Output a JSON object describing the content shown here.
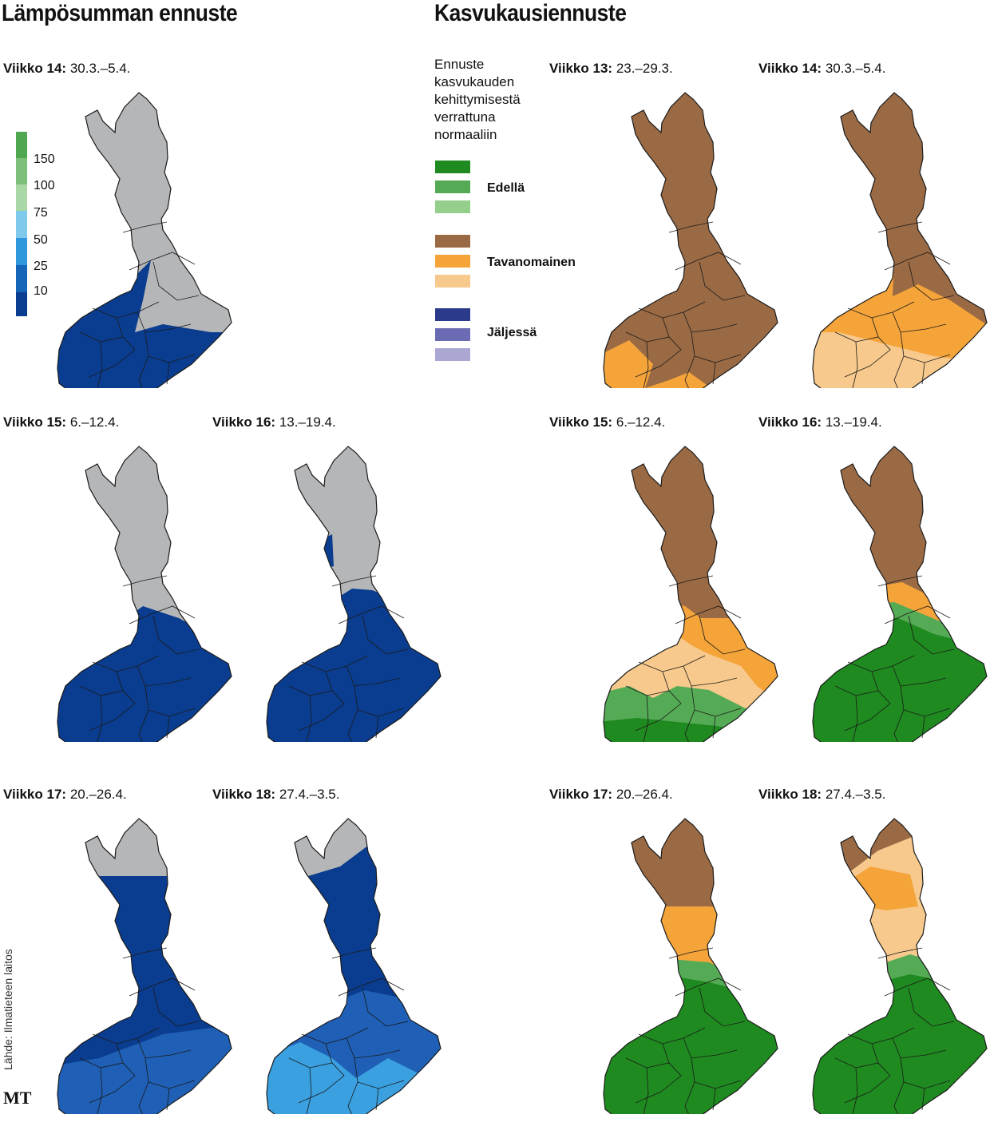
{
  "heat": {
    "title": "Lämpösumman ennuste",
    "legend": {
      "ticks": [
        "150",
        "100",
        "75",
        "50",
        "25",
        "10"
      ],
      "colors": [
        "#4fa84f",
        "#7cc07a",
        "#a9d7a5",
        "#7ec9ec",
        "#2f97dc",
        "#1565b8",
        "#0a3d8f"
      ]
    },
    "panels": [
      {
        "week": "Viikko 14:",
        "dates": "30.3.–5.4."
      },
      {
        "week": "Viikko 15:",
        "dates": "6.–12.4."
      },
      {
        "week": "Viikko 16:",
        "dates": "13.–19.4."
      },
      {
        "week": "Viikko 17:",
        "dates": "20.–26.4."
      },
      {
        "week": "Viikko 18:",
        "dates": "27.4.–3.5."
      }
    ]
  },
  "growth": {
    "title": "Kasvukausiennuste",
    "legend": {
      "title": "Ennuste kasvukauden kehittymisestä verrattuna normaaliin",
      "groups": [
        {
          "label": "Edellä",
          "colors": [
            "#1f8a1f",
            "#55ab55",
            "#94cf8c"
          ]
        },
        {
          "label": "Tavanomainen",
          "colors": [
            "#9a6a44",
            "#f5a43a",
            "#f7c98c"
          ]
        },
        {
          "label": "Jäljessä",
          "colors": [
            "#2b3a8a",
            "#6a6bb2",
            "#aaa8d3"
          ]
        }
      ]
    },
    "panels": [
      {
        "week": "Viikko 13:",
        "dates": "23.–29.3."
      },
      {
        "week": "Viikko 14:",
        "dates": "30.3.–5.4."
      },
      {
        "week": "Viikko 15:",
        "dates": "6.–12.4."
      },
      {
        "week": "Viikko 16:",
        "dates": "13.–19.4."
      },
      {
        "week": "Viikko 17:",
        "dates": "20.–26.4."
      },
      {
        "week": "Viikko 18:",
        "dates": "27.4.–3.5."
      }
    ]
  },
  "colors": {
    "no_data_grey": "#b5b6b8",
    "heat_dark_blue": "#0a3d8f",
    "heat_mid_blue": "#1f5fb5",
    "heat_light_blue": "#3aa0e0",
    "brown": "#9a6a44",
    "orange": "#f5a43a",
    "light_orange": "#f7c98c",
    "dark_green": "#1f8a1f",
    "mid_green": "#55ab55"
  },
  "source": "Lähde: Ilmatieteen laitos",
  "brand": "MT"
}
